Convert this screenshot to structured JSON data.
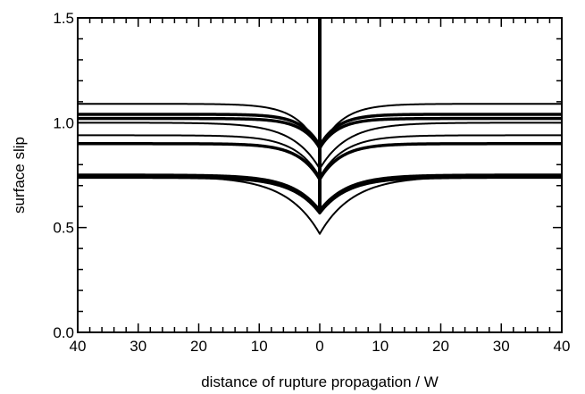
{
  "chart_data": {
    "type": "line",
    "title": "",
    "xlabel": "distance of rupture propagation / W",
    "ylabel": "surface slip",
    "xlim": [
      -40,
      40
    ],
    "ylim": [
      0,
      1.5
    ],
    "x_ticks": [
      -40,
      -30,
      -20,
      -10,
      0,
      10,
      20,
      30,
      40
    ],
    "x_tick_labels": [
      "40",
      "30",
      "20",
      "10",
      "0",
      "10",
      "20",
      "30",
      "40"
    ],
    "y_ticks": [
      0,
      0.5,
      1.0,
      1.5
    ],
    "y_tick_labels": [
      "0.0",
      "0.5",
      "1.0",
      "1.5"
    ],
    "grid": false,
    "legend": "none",
    "line_color": "#000000",
    "series": [
      {
        "plateau": 1.09,
        "center": 0.87,
        "width": 3.5,
        "stroke": "thin"
      },
      {
        "plateau": 1.04,
        "center": 0.89,
        "width": 3.0,
        "stroke": "thick"
      },
      {
        "plateau": 1.02,
        "center": 0.88,
        "width": 3.0,
        "stroke": "thick"
      },
      {
        "plateau": 1.0,
        "center": 0.78,
        "width": 4.5,
        "stroke": "thin"
      },
      {
        "plateau": 0.94,
        "center": 0.74,
        "width": 4.0,
        "stroke": "thin"
      },
      {
        "plateau": 0.9,
        "center": 0.73,
        "width": 3.5,
        "stroke": "thick"
      },
      {
        "plateau": 0.75,
        "center": 0.58,
        "width": 4.5,
        "stroke": "thick"
      },
      {
        "plateau": 0.74,
        "center": 0.57,
        "width": 4.5,
        "stroke": "thick"
      },
      {
        "plateau": 0.745,
        "center": 0.47,
        "width": 5.5,
        "stroke": "thin"
      }
    ],
    "center_spike": {
      "x": 0,
      "y_from": 0.57,
      "y_to": 1.5
    }
  }
}
